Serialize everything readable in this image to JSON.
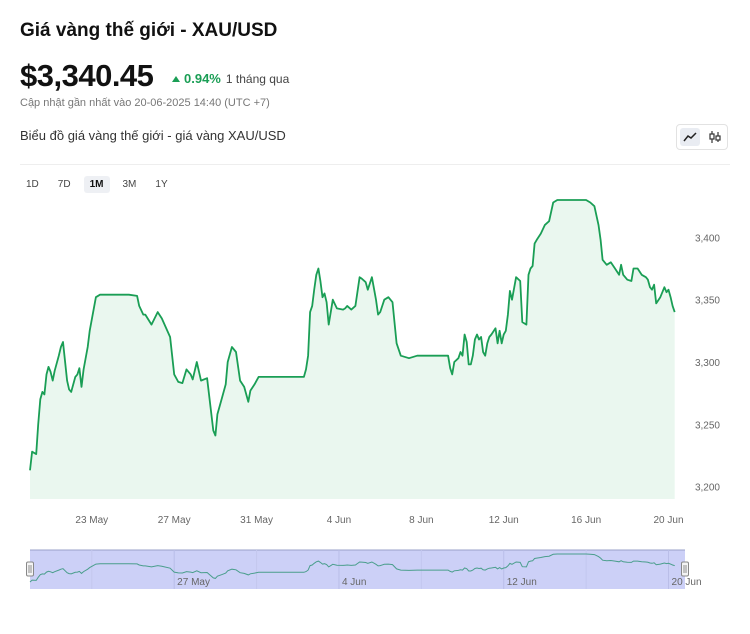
{
  "header": {
    "title": "Giá vàng thế giới - XAU/USD",
    "price": "$3,340.45",
    "change_pct": "0.94%",
    "change_period": "1 tháng qua",
    "updated": "Cập nhật gần nhất vào 20-06-2025 14:40 (UTC +7)",
    "chart_title": "Biểu đồ giá vàng thế giới - giá vàng XAU/USD"
  },
  "range_buttons": [
    "1D",
    "7D",
    "1M",
    "3M",
    "1Y"
  ],
  "selected_range": "1M",
  "colors": {
    "line": "#1a9e55",
    "fill": "#eaf7ef",
    "up": "#1a9e55",
    "navigator_fill": "#ccd0f7"
  },
  "chart_data": {
    "type": "area",
    "ylim": [
      3190,
      3430
    ],
    "yticks": [
      3200,
      3250,
      3300,
      3350,
      3400
    ],
    "ytick_labels": [
      "3,200",
      "3,250",
      "3,300",
      "3,350",
      "3,400"
    ],
    "x_ticks": [
      {
        "pos": 3,
        "label": "23 May"
      },
      {
        "pos": 7,
        "label": "27 May"
      },
      {
        "pos": 11,
        "label": "31 May"
      },
      {
        "pos": 15,
        "label": "4 Jun"
      },
      {
        "pos": 19,
        "label": "8 Jun"
      },
      {
        "pos": 23,
        "label": "12 Jun"
      },
      {
        "pos": 27,
        "label": "16 Jun"
      },
      {
        "pos": 31,
        "label": "20 Jun"
      }
    ],
    "navigator_ticks": [
      {
        "pos": 7,
        "label": "27 May"
      },
      {
        "pos": 15,
        "label": "4 Jun"
      },
      {
        "pos": 23,
        "label": "12 Jun"
      },
      {
        "pos": 31,
        "label": "20 Jun"
      }
    ],
    "x_range": [
      0.0,
      31.8
    ],
    "x": [
      0.0,
      0.1,
      0.3,
      0.4,
      0.5,
      0.6,
      0.7,
      0.8,
      0.9,
      1.0,
      1.1,
      1.2,
      1.4,
      1.5,
      1.6,
      1.8,
      1.9,
      2.0,
      2.2,
      2.3,
      2.4,
      2.5,
      2.6,
      2.8,
      2.9,
      3.2,
      3.4,
      3.5,
      3.6,
      4.0,
      4.4,
      4.8,
      5.2,
      5.3,
      5.5,
      5.6,
      5.9,
      6.2,
      6.4,
      6.8,
      7.0,
      7.2,
      7.4,
      7.6,
      7.8,
      7.9,
      8.1,
      8.3,
      8.6,
      8.9,
      9.0,
      9.1,
      9.3,
      9.5,
      9.6,
      9.8,
      10.0,
      10.2,
      10.4,
      10.6,
      10.7,
      10.9,
      11.1,
      11.2,
      11.4,
      11.6,
      11.8,
      12.0,
      12.2,
      12.4,
      12.6,
      12.8,
      13.0,
      13.2,
      13.3,
      13.4,
      13.5,
      13.6,
      13.7,
      13.8,
      13.9,
      14.0,
      14.1,
      14.2,
      14.3,
      14.4,
      14.5,
      14.7,
      14.9,
      15.2,
      15.3,
      15.4,
      15.6,
      15.8,
      16.0,
      16.1,
      16.3,
      16.4,
      16.6,
      16.8,
      16.9,
      17.0,
      17.2,
      17.4,
      17.6,
      17.8,
      18.0,
      18.4,
      18.8,
      19.2,
      19.6,
      19.9,
      20.1,
      20.3,
      20.4,
      20.5,
      20.6,
      20.8,
      20.9,
      21.0,
      21.1,
      21.2,
      21.3,
      21.4,
      21.5,
      21.6,
      21.7,
      21.8,
      21.9,
      22.0,
      22.1,
      22.2,
      22.3,
      22.4,
      22.6,
      22.7,
      22.8,
      22.9,
      23.0,
      23.1,
      23.2,
      23.3,
      23.4,
      23.6,
      23.8,
      23.9,
      24.1,
      24.2,
      24.3,
      24.4,
      24.5,
      24.6,
      24.8,
      25.0,
      25.2,
      25.4,
      25.6,
      25.8,
      26.2,
      26.6,
      26.8,
      27.0,
      27.2,
      27.4,
      27.6,
      27.7,
      27.8,
      28.0,
      28.2,
      28.4,
      28.6,
      28.7,
      28.8,
      29.0,
      29.2,
      29.3,
      29.5,
      29.7,
      29.9,
      30.0,
      30.1,
      30.2,
      30.3,
      30.4,
      30.6,
      30.8,
      30.9,
      31.0,
      31.1,
      31.2,
      31.3
    ],
    "y": [
      3213,
      3228,
      3226,
      3250,
      3270,
      3276,
      3274,
      3290,
      3296,
      3292,
      3285,
      3293,
      3305,
      3312,
      3316,
      3285,
      3278,
      3276,
      3288,
      3290,
      3295,
      3280,
      3294,
      3312,
      3325,
      3352,
      3354,
      3354,
      3354,
      3354,
      3354,
      3354,
      3353,
      3345,
      3338,
      3338,
      3330,
      3340,
      3335,
      3320,
      3290,
      3284,
      3283,
      3294,
      3290,
      3286,
      3300,
      3285,
      3287,
      3245,
      3241,
      3258,
      3270,
      3282,
      3300,
      3312,
      3308,
      3285,
      3280,
      3268,
      3277,
      3282,
      3288,
      3288,
      3288,
      3288,
      3288,
      3288,
      3288,
      3288,
      3288,
      3288,
      3288,
      3288,
      3288,
      3294,
      3305,
      3340,
      3345,
      3358,
      3370,
      3375,
      3365,
      3352,
      3355,
      3348,
      3330,
      3350,
      3343,
      3342,
      3343,
      3345,
      3342,
      3345,
      3368,
      3367,
      3364,
      3358,
      3368,
      3350,
      3338,
      3340,
      3350,
      3352,
      3348,
      3315,
      3305,
      3303,
      3305,
      3305,
      3305,
      3305,
      3305,
      3305,
      3295,
      3290,
      3300,
      3303,
      3308,
      3305,
      3322,
      3316,
      3298,
      3298,
      3305,
      3318,
      3322,
      3318,
      3320,
      3308,
      3305,
      3315,
      3320,
      3322,
      3327,
      3315,
      3325,
      3315,
      3322,
      3325,
      3338,
      3357,
      3350,
      3368,
      3365,
      3332,
      3330,
      3370,
      3375,
      3377,
      3395,
      3398,
      3403,
      3410,
      3413,
      3428,
      3430,
      3430,
      3430,
      3430,
      3430,
      3430,
      3428,
      3425,
      3410,
      3398,
      3382,
      3378,
      3380,
      3375,
      3370,
      3378,
      3370,
      3366,
      3365,
      3375,
      3375,
      3370,
      3368,
      3366,
      3360,
      3358,
      3362,
      3347,
      3352,
      3360,
      3356,
      3358,
      3352,
      3345,
      3340
    ]
  }
}
